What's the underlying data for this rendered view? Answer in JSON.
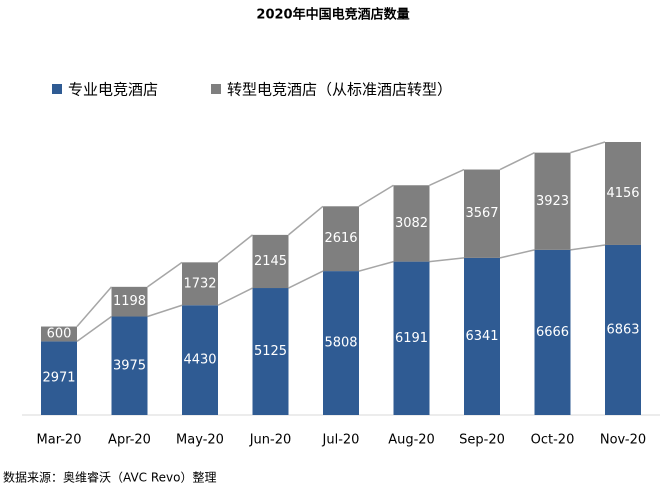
{
  "chart_data": {
    "type": "stacked_bar",
    "title": "2020年中国电竞酒店数量",
    "categories": [
      "Mar-20",
      "Apr-20",
      "May-20",
      "Jun-20",
      "Jul-20",
      "Aug-20",
      "Sep-20",
      "Oct-20",
      "Nov-20"
    ],
    "series": [
      {
        "name": "专业电竞酒店",
        "color": "#2f5b93",
        "values": [
          2971,
          3975,
          4430,
          5125,
          5808,
          6191,
          6341,
          6666,
          6863
        ]
      },
      {
        "name": "转型电竞酒店（从标准酒店转型）",
        "color": "#7f7f7f",
        "values": [
          600,
          1198,
          1732,
          2145,
          2616,
          3082,
          3567,
          3923,
          4156
        ]
      }
    ],
    "source": "数据来源：奥维睿沃（AVC Revo）整理"
  }
}
